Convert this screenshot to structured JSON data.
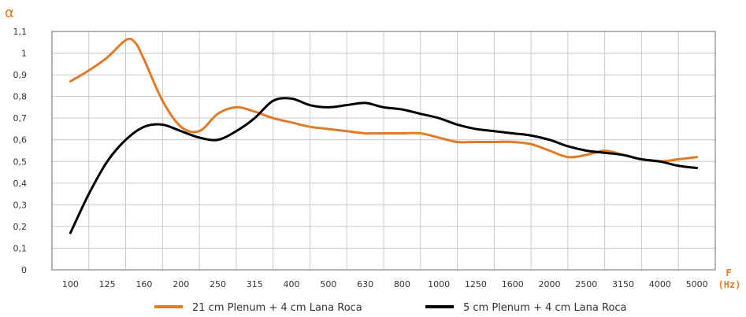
{
  "chart_data": {
    "type": "line",
    "ylabel": "α",
    "xlabel_line1": "F",
    "xlabel_line2": "(Hz)",
    "ylim": [
      0,
      1.1
    ],
    "yticks": [
      0,
      0.1,
      0.2,
      0.3,
      0.4,
      0.5,
      0.6,
      0.7,
      0.8,
      0.9,
      1.0,
      1.1
    ],
    "ytick_labels": [
      "0",
      "0,1",
      "0,2",
      "0,3",
      "0,4",
      "0,5",
      "0,6",
      "0,7",
      "0,8",
      "0,9",
      "1",
      "1,1"
    ],
    "categories": [
      "100",
      "125",
      "160",
      "200",
      "250",
      "315",
      "400",
      "500",
      "630",
      "800",
      "1000",
      "1250",
      "1600",
      "2000",
      "2500",
      "3150",
      "4000",
      "5000"
    ],
    "grid": true,
    "legend_position": "bottom",
    "series": [
      {
        "name": "21 cm Plenum + 4 cm Lana Roca",
        "color": "#e07b28",
        "x": [
          0,
          0.5,
          1,
          1.5,
          1.75,
          2,
          2.5,
          3,
          3.5,
          4,
          4.5,
          5,
          5.5,
          6,
          6.5,
          7,
          7.5,
          8,
          8.5,
          9,
          9.5,
          10,
          10.5,
          11,
          11.5,
          12,
          12.5,
          13,
          13.5,
          14,
          14.5,
          15,
          15.5,
          16,
          16.5,
          17
        ],
        "y": [
          0.87,
          0.92,
          0.98,
          1.06,
          1.05,
          0.97,
          0.78,
          0.66,
          0.64,
          0.72,
          0.75,
          0.73,
          0.7,
          0.68,
          0.66,
          0.65,
          0.64,
          0.63,
          0.63,
          0.63,
          0.63,
          0.61,
          0.59,
          0.59,
          0.59,
          0.59,
          0.58,
          0.55,
          0.52,
          0.53,
          0.55,
          0.53,
          0.51,
          0.5,
          0.51,
          0.52
        ]
      },
      {
        "name": "5 cm Plenum + 4 cm Lana Roca",
        "color": "#000000",
        "x": [
          0,
          0.5,
          1,
          1.5,
          2,
          2.5,
          3,
          3.5,
          4,
          4.5,
          5,
          5.5,
          6,
          6.5,
          7,
          7.5,
          8,
          8.5,
          9,
          9.5,
          10,
          10.5,
          11,
          11.5,
          12,
          12.5,
          13,
          13.5,
          14,
          14.5,
          15,
          15.5,
          16,
          16.5,
          17
        ],
        "y": [
          0.17,
          0.35,
          0.5,
          0.6,
          0.66,
          0.67,
          0.64,
          0.61,
          0.6,
          0.64,
          0.7,
          0.78,
          0.79,
          0.76,
          0.75,
          0.76,
          0.77,
          0.75,
          0.74,
          0.72,
          0.7,
          0.67,
          0.65,
          0.64,
          0.63,
          0.62,
          0.6,
          0.57,
          0.55,
          0.54,
          0.53,
          0.51,
          0.5,
          0.48,
          0.47
        ]
      }
    ]
  }
}
